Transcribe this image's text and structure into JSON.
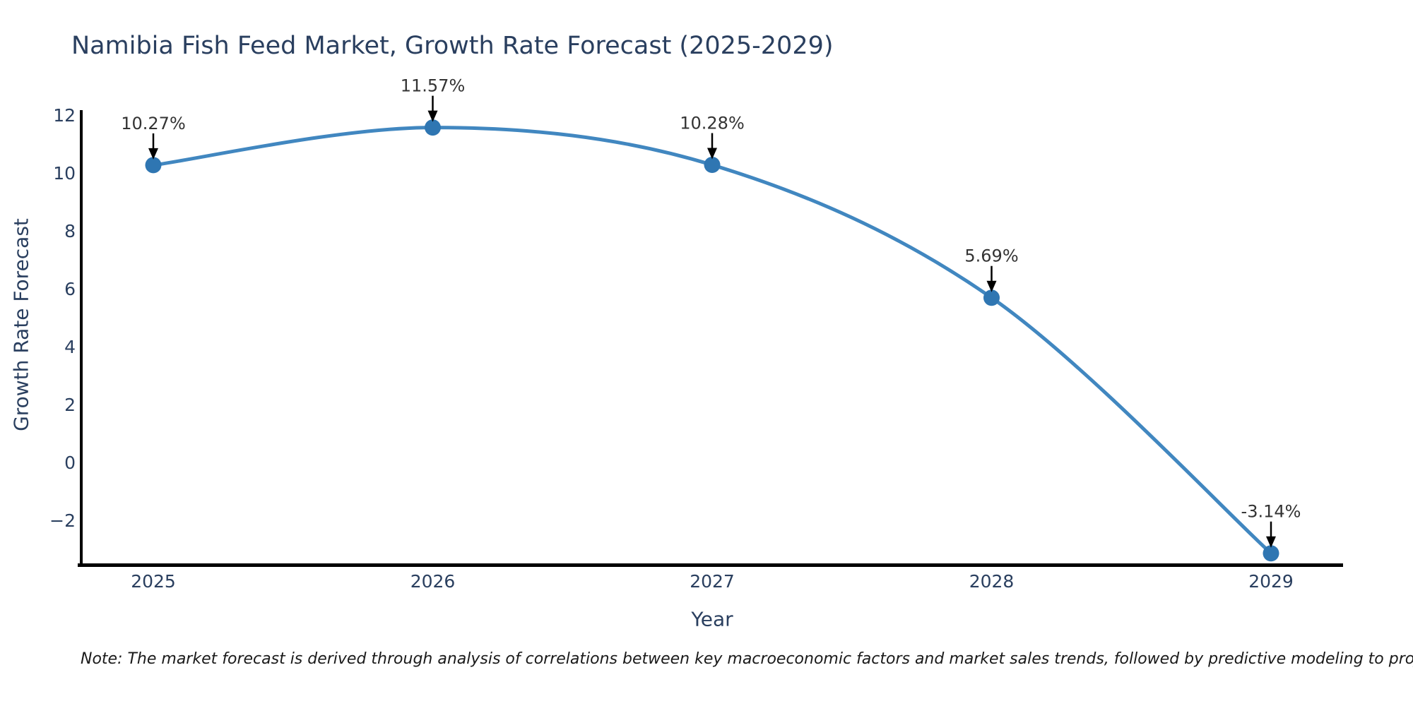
{
  "chart_data": {
    "type": "line",
    "line_shape": "spline",
    "title": "Namibia Fish Feed Market, Growth Rate Forecast (2025-2029)",
    "xlabel": "Year",
    "ylabel": "Growth Rate Forecast",
    "x": [
      2025,
      2026,
      2027,
      2028,
      2029
    ],
    "x_tick_labels": [
      "2025",
      "2026",
      "2027",
      "2028",
      "2029"
    ],
    "y": [
      10.27,
      11.57,
      10.28,
      5.69,
      -3.14
    ],
    "point_labels": [
      "10.27%",
      "11.57%",
      "10.28%",
      "5.69%",
      "-3.14%"
    ],
    "y_ticks": [
      12,
      10,
      8,
      6,
      4,
      2,
      0,
      -2
    ],
    "y_tick_labels": [
      "12",
      "10",
      "8",
      "6",
      "4",
      "2",
      "0",
      "−2"
    ],
    "ylim": [
      -3.6,
      12.2
    ],
    "grid": false,
    "legend_position": "none",
    "annotations_have_arrows": true,
    "colors": {
      "line": "#4187c0",
      "marker": "#2f76b2",
      "axis_line": "#000000",
      "label_text": "#2a3f5f",
      "annotation_text": "#333333",
      "arrow": "#000000",
      "background": "#ffffff"
    }
  },
  "note": {
    "text": "Note: The market forecast is derived through analysis of correlations between key macroeconomic factors and market sales trends, followed by predictive modeling to project future sales"
  }
}
